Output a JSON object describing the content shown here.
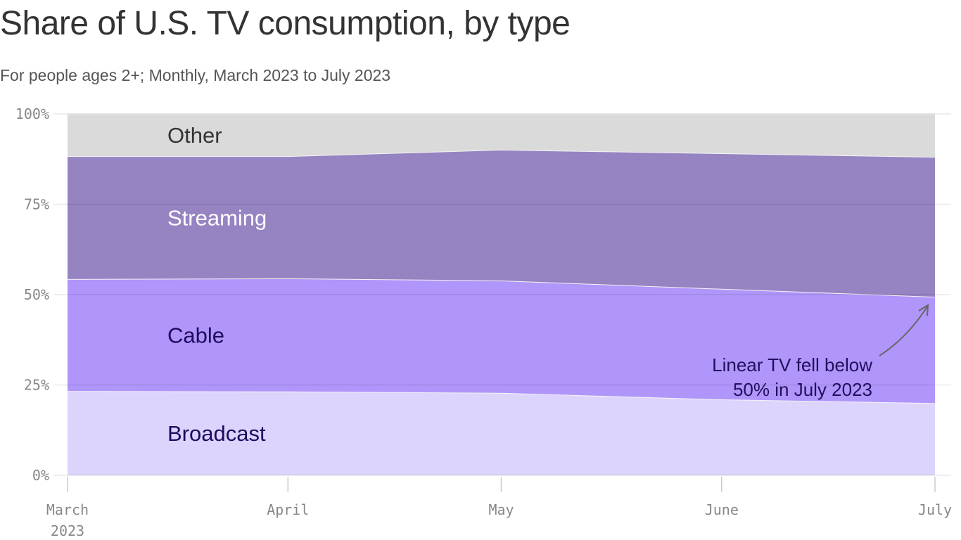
{
  "title": "Share of U.S. TV consumption, by type",
  "subtitle": "For people ages 2+; Monthly, March 2023 to July 2023",
  "chart_data": {
    "type": "area",
    "stacked": true,
    "x": [
      "2023-03-01",
      "2023-04-01",
      "2023-05-01",
      "2023-06-01",
      "2023-07-01"
    ],
    "x_tick_labels": [
      [
        "March",
        "2023"
      ],
      [
        "April"
      ],
      [
        "May"
      ],
      [
        "June"
      ],
      [
        "July"
      ]
    ],
    "y_tick_labels": [
      "0%",
      "25%",
      "50%",
      "75%",
      "100%"
    ],
    "ylim": [
      0,
      100
    ],
    "grid": true,
    "series": [
      {
        "name": "Broadcast",
        "values": [
          23.3,
          23.2,
          22.8,
          21.0,
          20.0
        ],
        "color": "#ddd4fd",
        "label_color": "#1f0a5e"
      },
      {
        "name": "Cable",
        "values": [
          31.0,
          31.3,
          31.1,
          30.6,
          29.4
        ],
        "color": "#b095fb",
        "label_color": "#1f0a5e"
      },
      {
        "name": "Streaming",
        "values": [
          34.0,
          33.8,
          36.2,
          37.5,
          38.7
        ],
        "color": "#9683c2",
        "label_color": "#ffffff"
      },
      {
        "name": "Other",
        "values": [
          11.7,
          11.7,
          9.9,
          10.9,
          11.9
        ],
        "color": "#dadada",
        "label_color": "#333333"
      }
    ],
    "annotation": {
      "lines": [
        "Linear TV fell below",
        "50% in July 2023"
      ],
      "target": {
        "x": "2023-07-01",
        "y": 49.4
      }
    }
  }
}
